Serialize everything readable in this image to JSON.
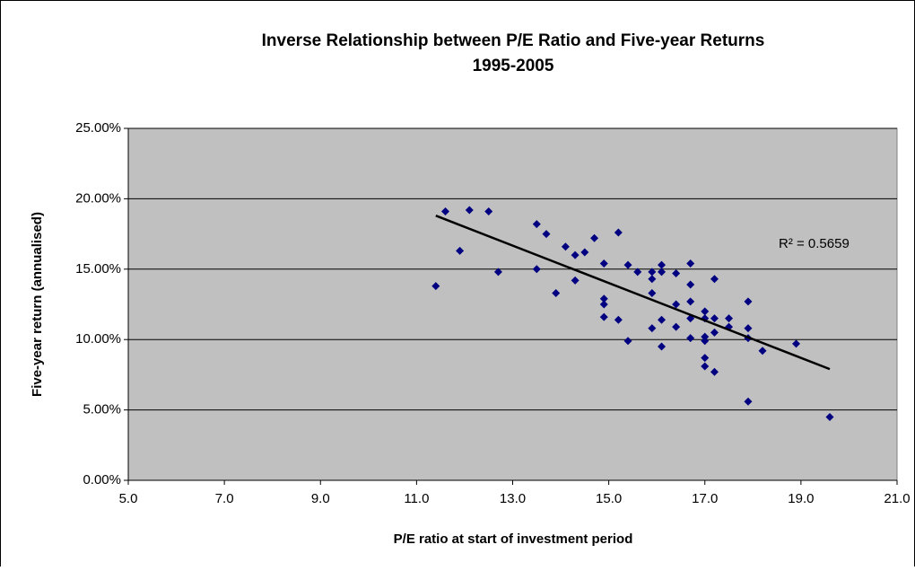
{
  "chart_data": {
    "type": "scatter",
    "title": [
      "Inverse Relationship between P/E Ratio and Five-year Returns",
      "1995-2005"
    ],
    "x_label": "P/E ratio at start of investment period",
    "y_label": "Five-year return (annualised)",
    "annotation": "R² = 0.5659",
    "grid": true,
    "color": "#000080",
    "xlim": [
      5,
      21
    ],
    "ylim": [
      0,
      25
    ],
    "xticks": [
      {
        "value": 5,
        "label": "5.0"
      },
      {
        "value": 7,
        "label": "7.0"
      },
      {
        "value": 9,
        "label": "9.0"
      },
      {
        "value": 11,
        "label": "11.0"
      },
      {
        "value": 13,
        "label": "13.0"
      },
      {
        "value": 15,
        "label": "15.0"
      },
      {
        "value": 17,
        "label": "17.0"
      },
      {
        "value": 19,
        "label": "19.0"
      },
      {
        "value": 21,
        "label": "21.0"
      }
    ],
    "yticks": [
      {
        "value": 0,
        "label": "0.00%"
      },
      {
        "value": 5,
        "label": "5.00%"
      },
      {
        "value": 10,
        "label": "10.00%"
      },
      {
        "value": 15,
        "label": "15.00%"
      },
      {
        "value": 20,
        "label": "20.00%"
      },
      {
        "value": 25,
        "label": "25.00%"
      }
    ],
    "x": [
      11.4,
      11.6,
      11.9,
      12.1,
      12.5,
      12.7,
      13.5,
      13.5,
      13.7,
      13.9,
      14.1,
      14.3,
      14.3,
      14.5,
      14.7,
      14.9,
      14.9,
      14.9,
      14.9,
      15.2,
      15.2,
      15.4,
      15.4,
      15.6,
      15.9,
      15.9,
      15.9,
      15.9,
      16.1,
      16.1,
      16.1,
      16.1,
      16.4,
      16.4,
      16.4,
      16.7,
      16.7,
      16.7,
      16.7,
      16.7,
      17.0,
      17.0,
      17.0,
      17.0,
      17.0,
      17.0,
      17.2,
      17.2,
      17.2,
      17.2,
      17.5,
      17.5,
      17.9,
      17.9,
      17.9,
      17.9,
      18.2,
      18.9,
      19.6
    ],
    "values": [
      13.8,
      19.1,
      16.3,
      19.2,
      19.1,
      14.8,
      18.2,
      15.0,
      17.5,
      13.3,
      16.6,
      16.0,
      14.2,
      16.2,
      17.2,
      15.4,
      12.9,
      12.5,
      11.6,
      17.6,
      11.4,
      15.3,
      9.9,
      14.8,
      14.8,
      14.3,
      13.3,
      10.8,
      15.3,
      14.8,
      11.4,
      9.5,
      14.7,
      12.5,
      10.9,
      15.4,
      13.9,
      12.7,
      11.5,
      10.1,
      12.0,
      11.5,
      10.2,
      9.9,
      8.7,
      8.1,
      14.3,
      11.5,
      10.5,
      7.7,
      11.5,
      10.9,
      12.7,
      10.8,
      10.1,
      5.6,
      9.2,
      9.7,
      4.5
    ],
    "trendline": {
      "x": [
        11.4,
        19.6
      ],
      "values": [
        18.8,
        7.9
      ]
    }
  }
}
